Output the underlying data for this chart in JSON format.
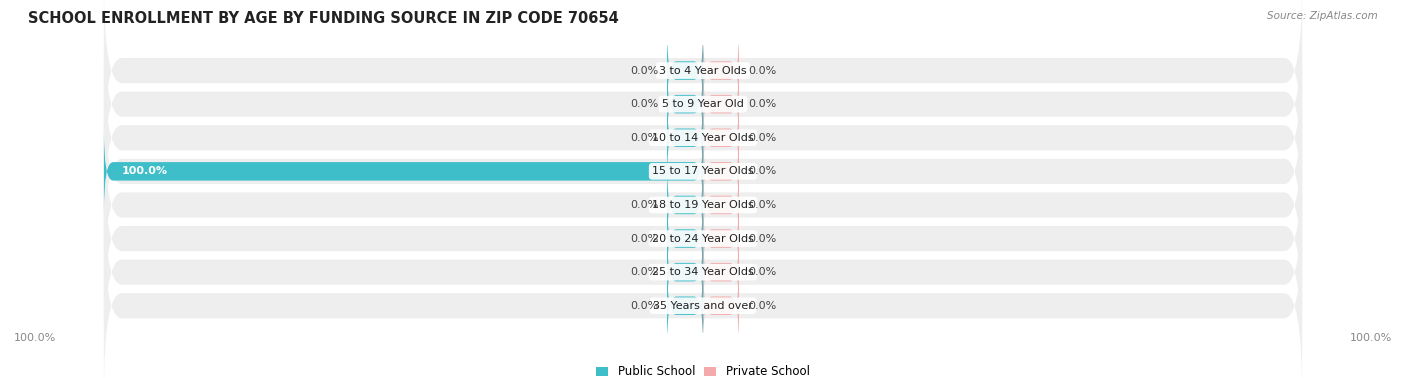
{
  "title": "SCHOOL ENROLLMENT BY AGE BY FUNDING SOURCE IN ZIP CODE 70654",
  "source": "Source: ZipAtlas.com",
  "categories": [
    "3 to 4 Year Olds",
    "5 to 9 Year Old",
    "10 to 14 Year Olds",
    "15 to 17 Year Olds",
    "18 to 19 Year Olds",
    "20 to 24 Year Olds",
    "25 to 34 Year Olds",
    "35 Years and over"
  ],
  "public_values": [
    0.0,
    0.0,
    0.0,
    100.0,
    0.0,
    0.0,
    0.0,
    0.0
  ],
  "private_values": [
    0.0,
    0.0,
    0.0,
    0.0,
    0.0,
    0.0,
    0.0,
    0.0
  ],
  "public_color": "#3dbec9",
  "private_color": "#f2aaaa",
  "background_color": "#ffffff",
  "row_bg_even": "#efefef",
  "row_bg_odd": "#e8e8e8",
  "axis_label_left": "100.0%",
  "axis_label_right": "100.0%",
  "title_fontsize": 10.5,
  "label_fontsize": 8,
  "category_fontsize": 8,
  "legend_fontsize": 8.5,
  "min_bar_width": 6,
  "total_width": 100
}
